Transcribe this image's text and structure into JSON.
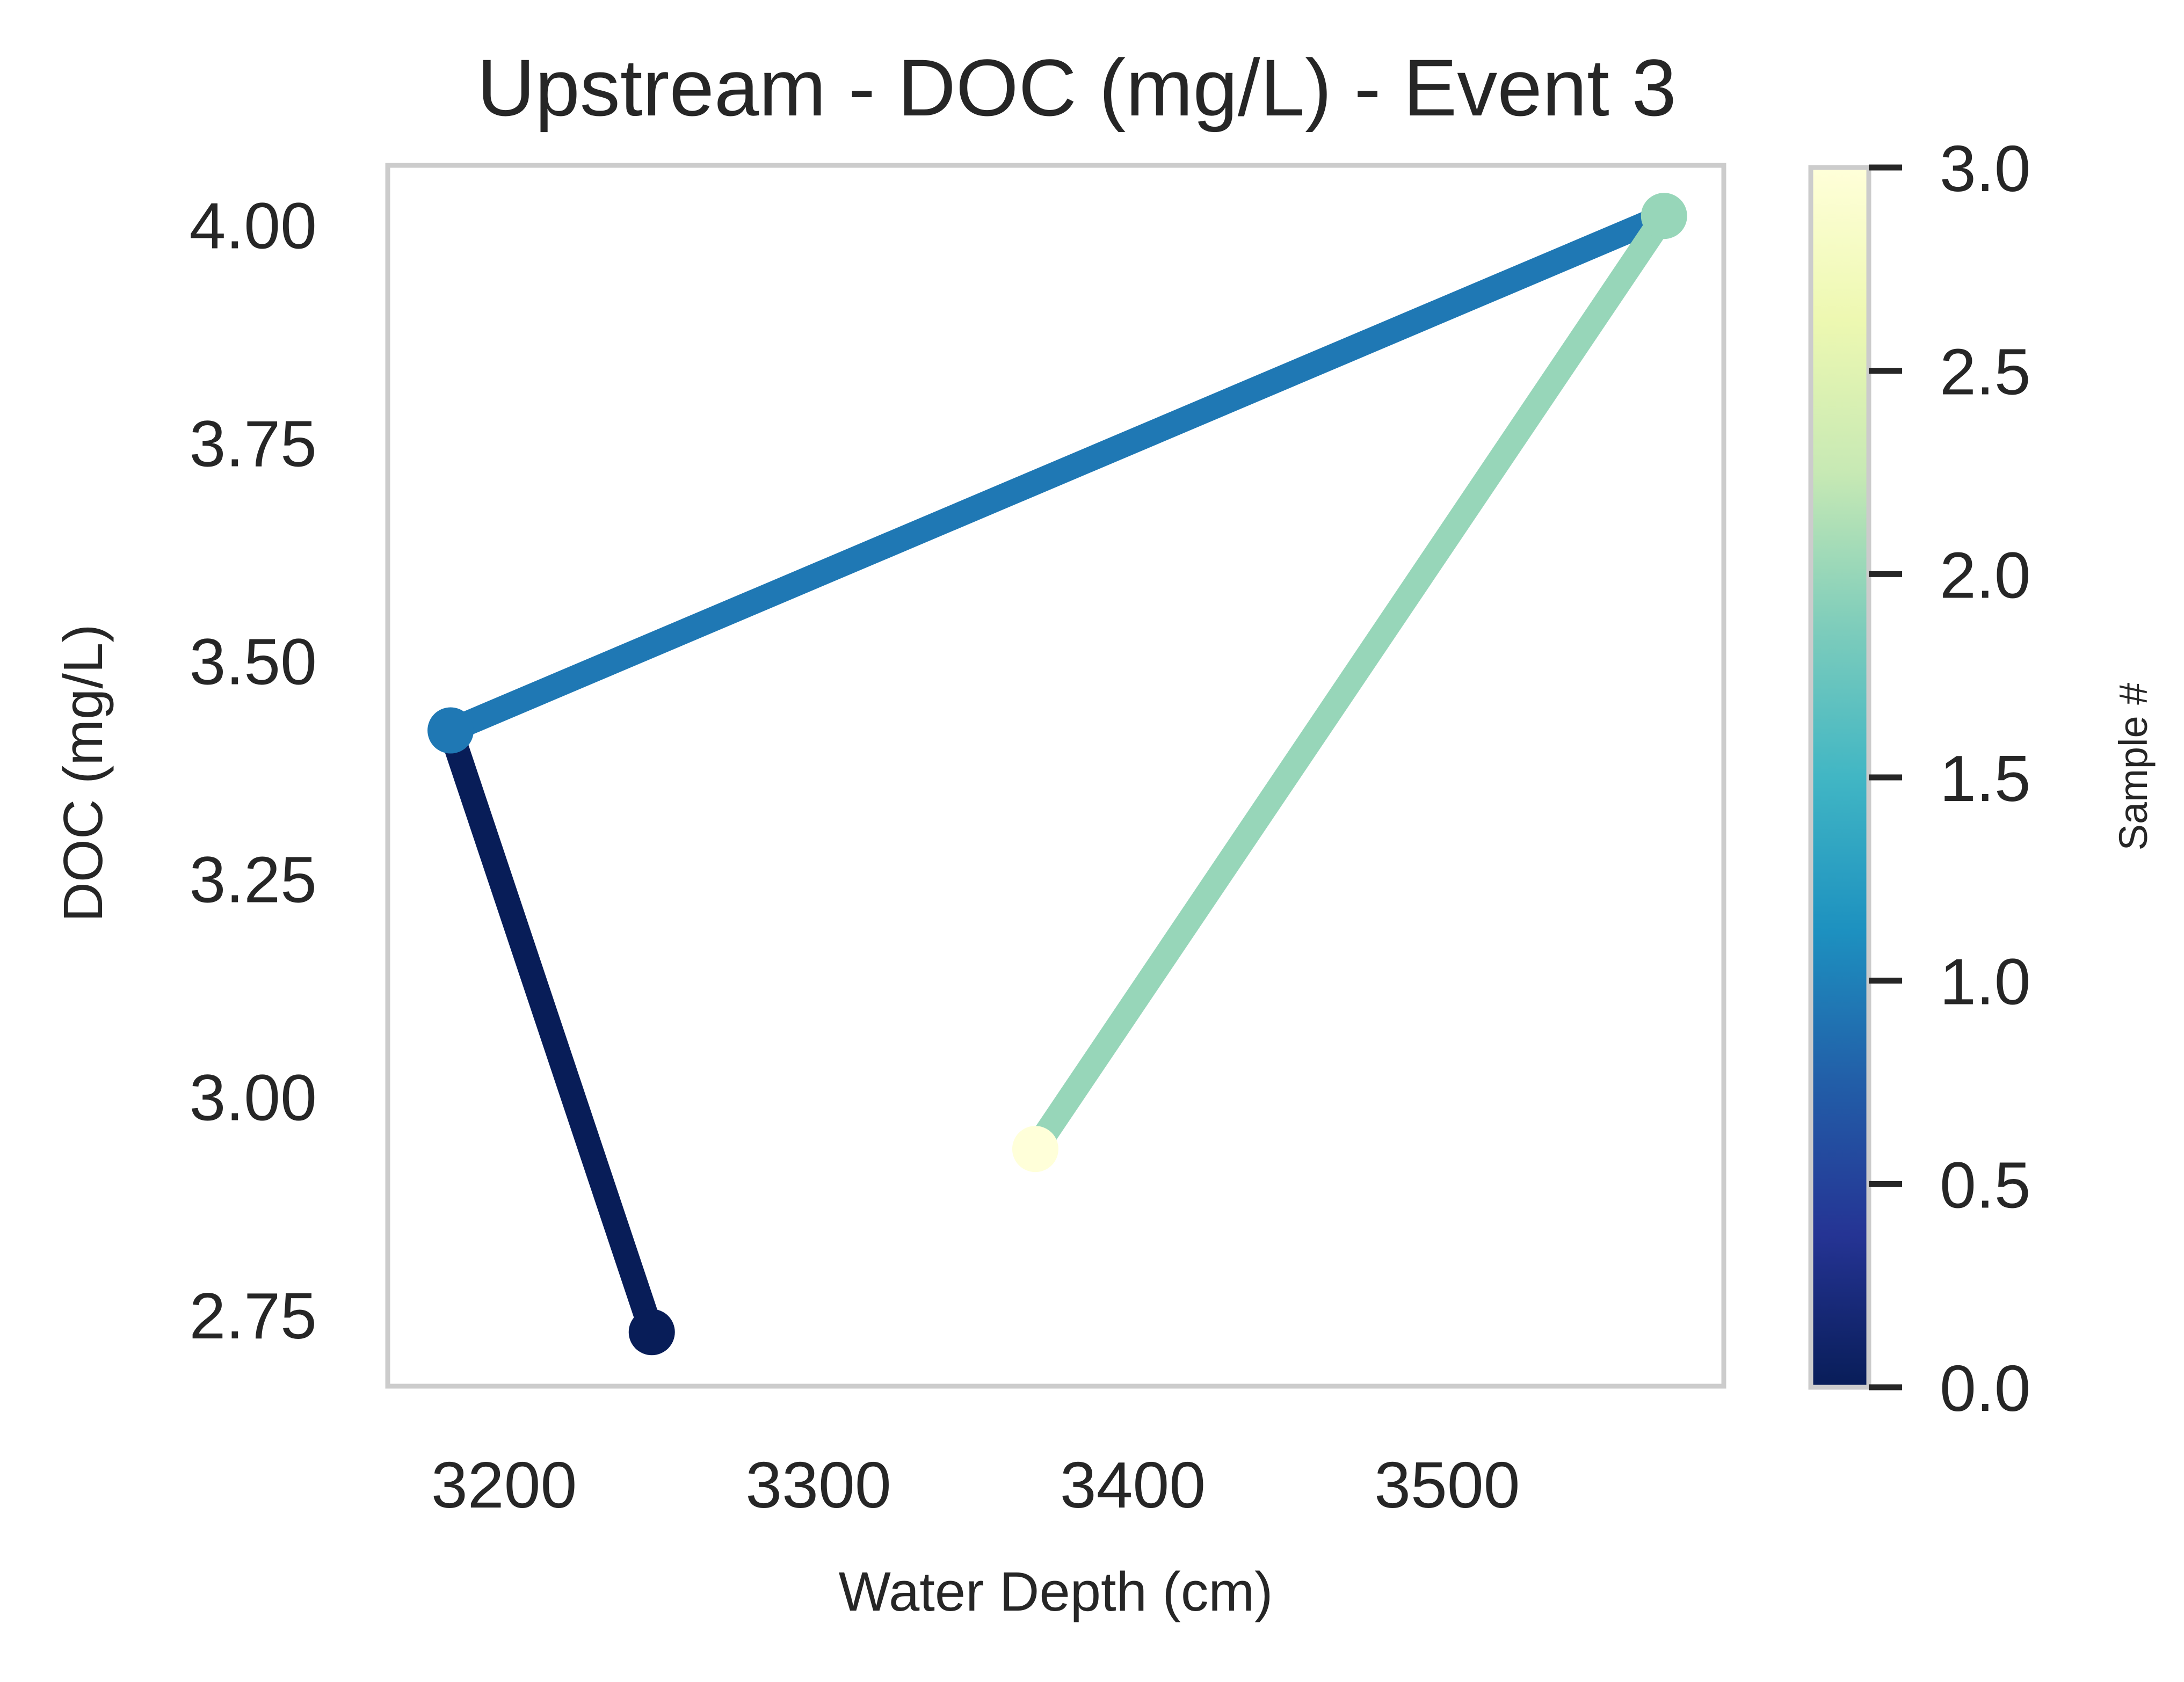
{
  "chart_data": {
    "type": "line",
    "title": "Upstream - DOC (mg/L) - Event 3",
    "xlabel": "Water Depth (cm)",
    "ylabel": "DOC (mg/L)",
    "xlim": [
      3163,
      3588
    ],
    "ylim": [
      2.668,
      4.068
    ],
    "xticks": [
      3200,
      3300,
      3400,
      3500
    ],
    "xtick_labels": [
      "3200",
      "3300",
      "3400",
      "3500"
    ],
    "yticks": [
      2.75,
      3.0,
      3.25,
      3.5,
      3.75,
      4.0
    ],
    "ytick_labels": [
      "2.75",
      "3.00",
      "3.25",
      "3.50",
      "3.75",
      "4.00"
    ],
    "grid": false,
    "points": [
      {
        "sample": 0,
        "x": 3247,
        "y": 2.73,
        "color": "#081d58"
      },
      {
        "sample": 1,
        "x": 3183,
        "y": 3.42,
        "color": "#1f78b4"
      },
      {
        "sample": 2,
        "x": 3569,
        "y": 4.01,
        "color": "#97d6b9"
      },
      {
        "sample": 3,
        "x": 3369,
        "y": 2.94,
        "color": "#ffffd9"
      }
    ],
    "segments": [
      {
        "from": 0,
        "to": 1,
        "color": "#081d58"
      },
      {
        "from": 1,
        "to": 2,
        "color": "#1f78b4"
      },
      {
        "from": 2,
        "to": 3,
        "color": "#97d6b9"
      }
    ],
    "colorbar": {
      "label": "Sample #",
      "range": [
        0,
        3
      ],
      "ticks": [
        0,
        0.5,
        1,
        1.5,
        2,
        2.5,
        3
      ],
      "tick_labels": [
        "0.0",
        "0.5",
        "1.0",
        "1.5",
        "2.0",
        "2.5",
        "3.0"
      ],
      "colormap": "YlGnBu_r",
      "stops": [
        {
          "v": 0.0,
          "color": "#081d58"
        },
        {
          "v": 0.375,
          "color": "#253494"
        },
        {
          "v": 0.75,
          "color": "#225ea8"
        },
        {
          "v": 1.125,
          "color": "#1d91c0"
        },
        {
          "v": 1.5,
          "color": "#41b6c4"
        },
        {
          "v": 1.875,
          "color": "#7fcdbb"
        },
        {
          "v": 2.25,
          "color": "#c7e9b4"
        },
        {
          "v": 2.625,
          "color": "#edf8b1"
        },
        {
          "v": 3.0,
          "color": "#ffffd9"
        }
      ]
    },
    "frame_color": "#cccccc"
  }
}
